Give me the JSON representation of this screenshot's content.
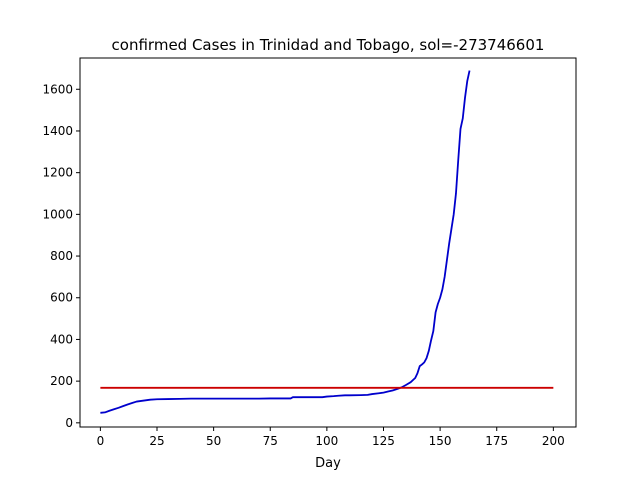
{
  "chart_data": {
    "type": "line",
    "title": "confirmed Cases in Trinidad and Tobago, sol=-273746601",
    "xlabel": "Day",
    "ylabel": "",
    "xlim": [
      -9,
      210
    ],
    "ylim": [
      -20,
      1750
    ],
    "xticks": [
      0,
      25,
      50,
      75,
      100,
      125,
      150,
      175,
      200
    ],
    "yticks": [
      0,
      200,
      400,
      600,
      800,
      1000,
      1200,
      1400,
      1600
    ],
    "grid": false,
    "legend": "none",
    "series": [
      {
        "color": "#0000cc",
        "x": [
          0,
          2,
          4,
          6,
          8,
          10,
          12,
          14,
          16,
          18,
          20,
          22,
          25,
          30,
          35,
          40,
          50,
          60,
          70,
          75,
          80,
          84,
          85,
          90,
          95,
          98,
          100,
          103,
          105,
          108,
          110,
          115,
          118,
          120,
          123,
          125,
          127,
          129,
          131,
          133,
          135,
          137,
          139,
          140,
          141,
          142,
          143,
          144,
          145,
          146,
          147,
          148,
          149,
          150,
          151,
          152,
          153,
          154,
          155,
          156,
          157,
          158,
          159,
          160,
          161,
          162,
          163
        ],
        "y": [
          48,
          50,
          58,
          65,
          72,
          80,
          88,
          95,
          102,
          105,
          108,
          111,
          113,
          114,
          115,
          116,
          116,
          116,
          116,
          117,
          117,
          117,
          123,
          123,
          123,
          123,
          126,
          128,
          130,
          132,
          132,
          133,
          134,
          138,
          142,
          145,
          150,
          155,
          162,
          170,
          182,
          195,
          215,
          238,
          272,
          280,
          290,
          310,
          345,
          395,
          440,
          530,
          570,
          600,
          640,
          700,
          780,
          860,
          930,
          1000,
          1100,
          1260,
          1410,
          1460,
          1560,
          1640,
          1690
        ]
      },
      {
        "color": "#cc0000",
        "x": [
          0,
          200
        ],
        "y": [
          168,
          168
        ]
      }
    ]
  }
}
